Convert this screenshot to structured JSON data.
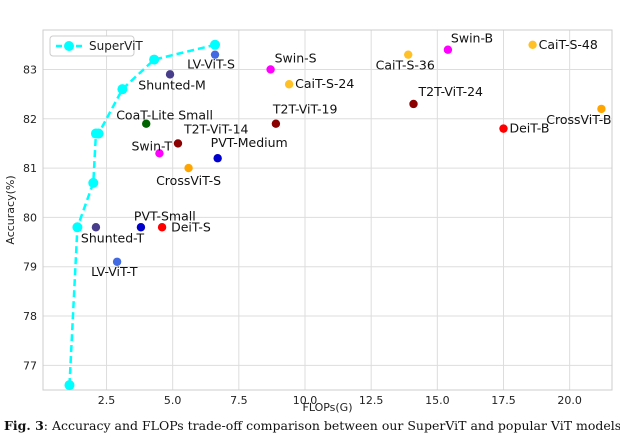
{
  "caption": {
    "label": "Fig. 3",
    "text": ":  Accuracy and FLOPs trade-off comparison between our SuperViT and popular ViT models. The"
  },
  "chart_data": {
    "type": "scatter",
    "xlabel": "FLOPs(G)",
    "ylabel": "Accuracy(%)",
    "xlim": [
      0.1,
      21.6
    ],
    "ylim": [
      76.5,
      83.8
    ],
    "xticks": [
      2.5,
      5.0,
      7.5,
      10.0,
      12.5,
      15.0,
      17.5,
      20.0
    ],
    "xtick_labels": [
      "2.5",
      "5.0",
      "7.5",
      "10.0",
      "12.5",
      "15.0",
      "17.5",
      "20.0"
    ],
    "yticks": [
      77,
      78,
      79,
      80,
      81,
      82,
      83
    ],
    "ytick_labels": [
      "77",
      "78",
      "79",
      "80",
      "81",
      "82",
      "83"
    ],
    "grid": true,
    "legend": {
      "position": "top-left",
      "entries": [
        "SuperViT"
      ]
    },
    "series": [
      {
        "name": "SuperViT",
        "color": "#00ffff",
        "style": "dashed-line-with-markers",
        "x": [
          1.1,
          1.4,
          2.0,
          2.1,
          2.2,
          3.1,
          4.3,
          6.6
        ],
        "y": [
          76.6,
          79.8,
          80.7,
          81.7,
          81.7,
          82.6,
          83.2,
          83.5
        ]
      }
    ],
    "points": [
      {
        "label": "LV-ViT-S",
        "x": 6.6,
        "y": 83.3,
        "color": "#4169e1"
      },
      {
        "label": "Shunted-M",
        "x": 4.9,
        "y": 82.9,
        "color": "#483d8b"
      },
      {
        "label": "Swin-S",
        "x": 8.7,
        "y": 83.0,
        "color": "#ff00ff"
      },
      {
        "label": "CaiT-S-24",
        "x": 9.4,
        "y": 82.7,
        "color": "#ffc125"
      },
      {
        "label": "CaiT-S-36",
        "x": 13.9,
        "y": 83.3,
        "color": "#ffc125"
      },
      {
        "label": "Swin-B",
        "x": 15.4,
        "y": 83.4,
        "color": "#ff00ff"
      },
      {
        "label": "CaiT-S-48",
        "x": 18.6,
        "y": 83.5,
        "color": "#ffc125"
      },
      {
        "label": "T2T-ViT-24",
        "x": 14.1,
        "y": 82.3,
        "color": "#8b0000"
      },
      {
        "label": "CrossViT-B",
        "x": 21.2,
        "y": 82.2,
        "color": "#ffa500"
      },
      {
        "label": "DeiT-B",
        "x": 17.5,
        "y": 81.8,
        "color": "#ff0000"
      },
      {
        "label": "T2T-ViT-19",
        "x": 8.9,
        "y": 81.9,
        "color": "#8b0000"
      },
      {
        "label": "CoaT-Lite Small",
        "x": 4.0,
        "y": 81.9,
        "color": "#006400"
      },
      {
        "label": "T2T-ViT-14",
        "x": 5.2,
        "y": 81.5,
        "color": "#8b0000"
      },
      {
        "label": "Swin-T",
        "x": 4.5,
        "y": 81.3,
        "color": "#ff00ff"
      },
      {
        "label": "PVT-Medium",
        "x": 6.7,
        "y": 81.2,
        "color": "#0000cd"
      },
      {
        "label": "CrossViT-S",
        "x": 5.6,
        "y": 81.0,
        "color": "#ffa500"
      },
      {
        "label": "PVT-Small",
        "x": 3.8,
        "y": 79.8,
        "color": "#0000cd"
      },
      {
        "label": "DeiT-S",
        "x": 4.6,
        "y": 79.8,
        "color": "#ff0000"
      },
      {
        "label": "Shunted-T",
        "x": 2.1,
        "y": 79.8,
        "color": "#483d8b"
      },
      {
        "label": "LV-ViT-T",
        "x": 2.9,
        "y": 79.1,
        "color": "#4169e1"
      }
    ]
  }
}
